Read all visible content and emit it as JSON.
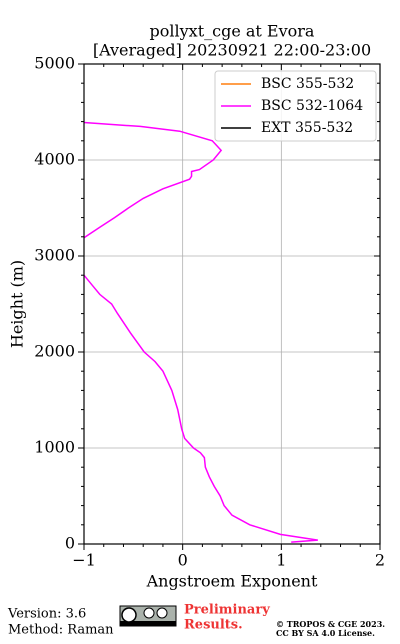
{
  "chart_data": {
    "type": "line",
    "title": "pollyxt_cge at Evora",
    "subtitle": "[Averaged] 20230921 22:00-23:00",
    "xlabel": "Angstroem Exponent",
    "ylabel": "Height (m)",
    "xlim": [
      -1,
      2
    ],
    "xticks": [
      {
        "value": -1,
        "label": "−1"
      },
      0,
      1,
      2
    ],
    "ylim": [
      0,
      5000
    ],
    "yticks": [
      0,
      1000,
      2000,
      3000,
      4000,
      5000
    ],
    "grid": true,
    "legend": "upper right",
    "y": [
      20,
      40,
      100,
      200,
      300,
      400,
      500,
      600,
      700,
      800,
      900,
      950,
      1000,
      1100,
      1200,
      1400,
      1600,
      1800,
      1900,
      2000,
      2200,
      2400,
      2500,
      2600,
      2700,
      2800,
      3000,
      3190,
      3300,
      3400,
      3500,
      3600,
      3700,
      3800,
      3830,
      3880,
      3900,
      4000,
      4100,
      4200,
      4300,
      4350,
      4390
    ],
    "series": [
      {
        "name": "BSC 355-532",
        "color": "#ff7f0e",
        "values": [
          null,
          null,
          null,
          null,
          null,
          null,
          null,
          null,
          null,
          null,
          null,
          null,
          null,
          null,
          null,
          null,
          null,
          null,
          null,
          null,
          null,
          null,
          null,
          null,
          null,
          null,
          null,
          null,
          null,
          null,
          null,
          null,
          null,
          null,
          null,
          null,
          null,
          null,
          null,
          null,
          null,
          null,
          null
        ]
      },
      {
        "name": "BSC 532-1064",
        "color": "#ff00ff",
        "values": [
          1.1,
          1.37,
          0.99,
          0.68,
          0.5,
          0.42,
          0.38,
          0.32,
          0.27,
          0.23,
          0.22,
          0.18,
          0.11,
          0.02,
          -0.01,
          -0.05,
          -0.11,
          -0.2,
          -0.28,
          -0.39,
          -0.53,
          -0.66,
          -0.72,
          -0.84,
          -0.92,
          -1.0,
          null,
          -1.0,
          -0.84,
          -0.69,
          -0.55,
          -0.4,
          -0.2,
          0.07,
          0.09,
          0.09,
          0.17,
          0.31,
          0.39,
          0.3,
          -0.03,
          -0.43,
          -1.0
        ]
      },
      {
        "name": "EXT 355-532",
        "color": "#000000",
        "values": [
          null,
          null,
          null,
          null,
          null,
          null,
          null,
          null,
          null,
          null,
          null,
          null,
          null,
          null,
          null,
          null,
          null,
          null,
          null,
          null,
          null,
          null,
          null,
          null,
          null,
          null,
          null,
          null,
          null,
          null,
          null,
          null,
          null,
          null,
          null,
          null,
          null,
          null,
          null,
          null,
          null,
          null,
          null
        ]
      }
    ]
  },
  "footer": {
    "version": "Version: 3.6",
    "method": "Method: Raman",
    "preliminary": "Preliminary",
    "results": "Results.",
    "copyright": "© TROPOS & CGE 2023.",
    "license": "CC BY SA 4.0 License."
  }
}
